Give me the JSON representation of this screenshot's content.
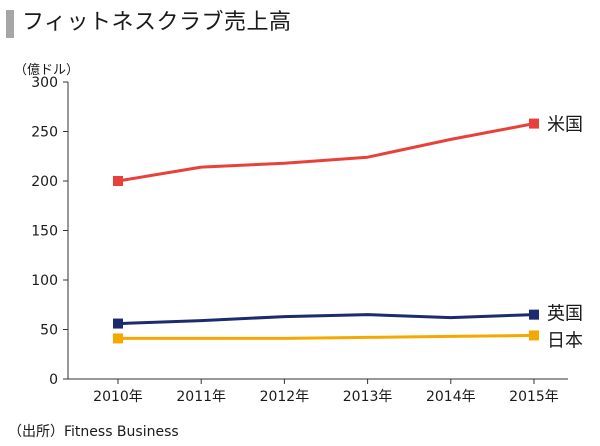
{
  "title": "フィットネスクラブ売上高",
  "source": "（出所）Fitness Business",
  "chart_data": {
    "type": "line",
    "unit_label": "（億ドル）",
    "categories": [
      "2010年",
      "2011年",
      "2012年",
      "2013年",
      "2014年",
      "2015年"
    ],
    "ylim": [
      0,
      300
    ],
    "yticks": [
      0,
      50,
      100,
      150,
      200,
      250,
      300
    ],
    "grid": false,
    "legend": "end-of-line labels",
    "series": [
      {
        "name": "米国",
        "color": "#e8413a",
        "values": [
          200,
          214,
          218,
          224,
          242,
          258
        ]
      },
      {
        "name": "英国",
        "color": "#1c2a6e",
        "values": [
          56,
          59,
          63,
          65,
          62,
          65
        ]
      },
      {
        "name": "日本",
        "color": "#f5a800",
        "values": [
          41,
          41,
          41,
          42,
          43,
          44
        ]
      }
    ]
  }
}
